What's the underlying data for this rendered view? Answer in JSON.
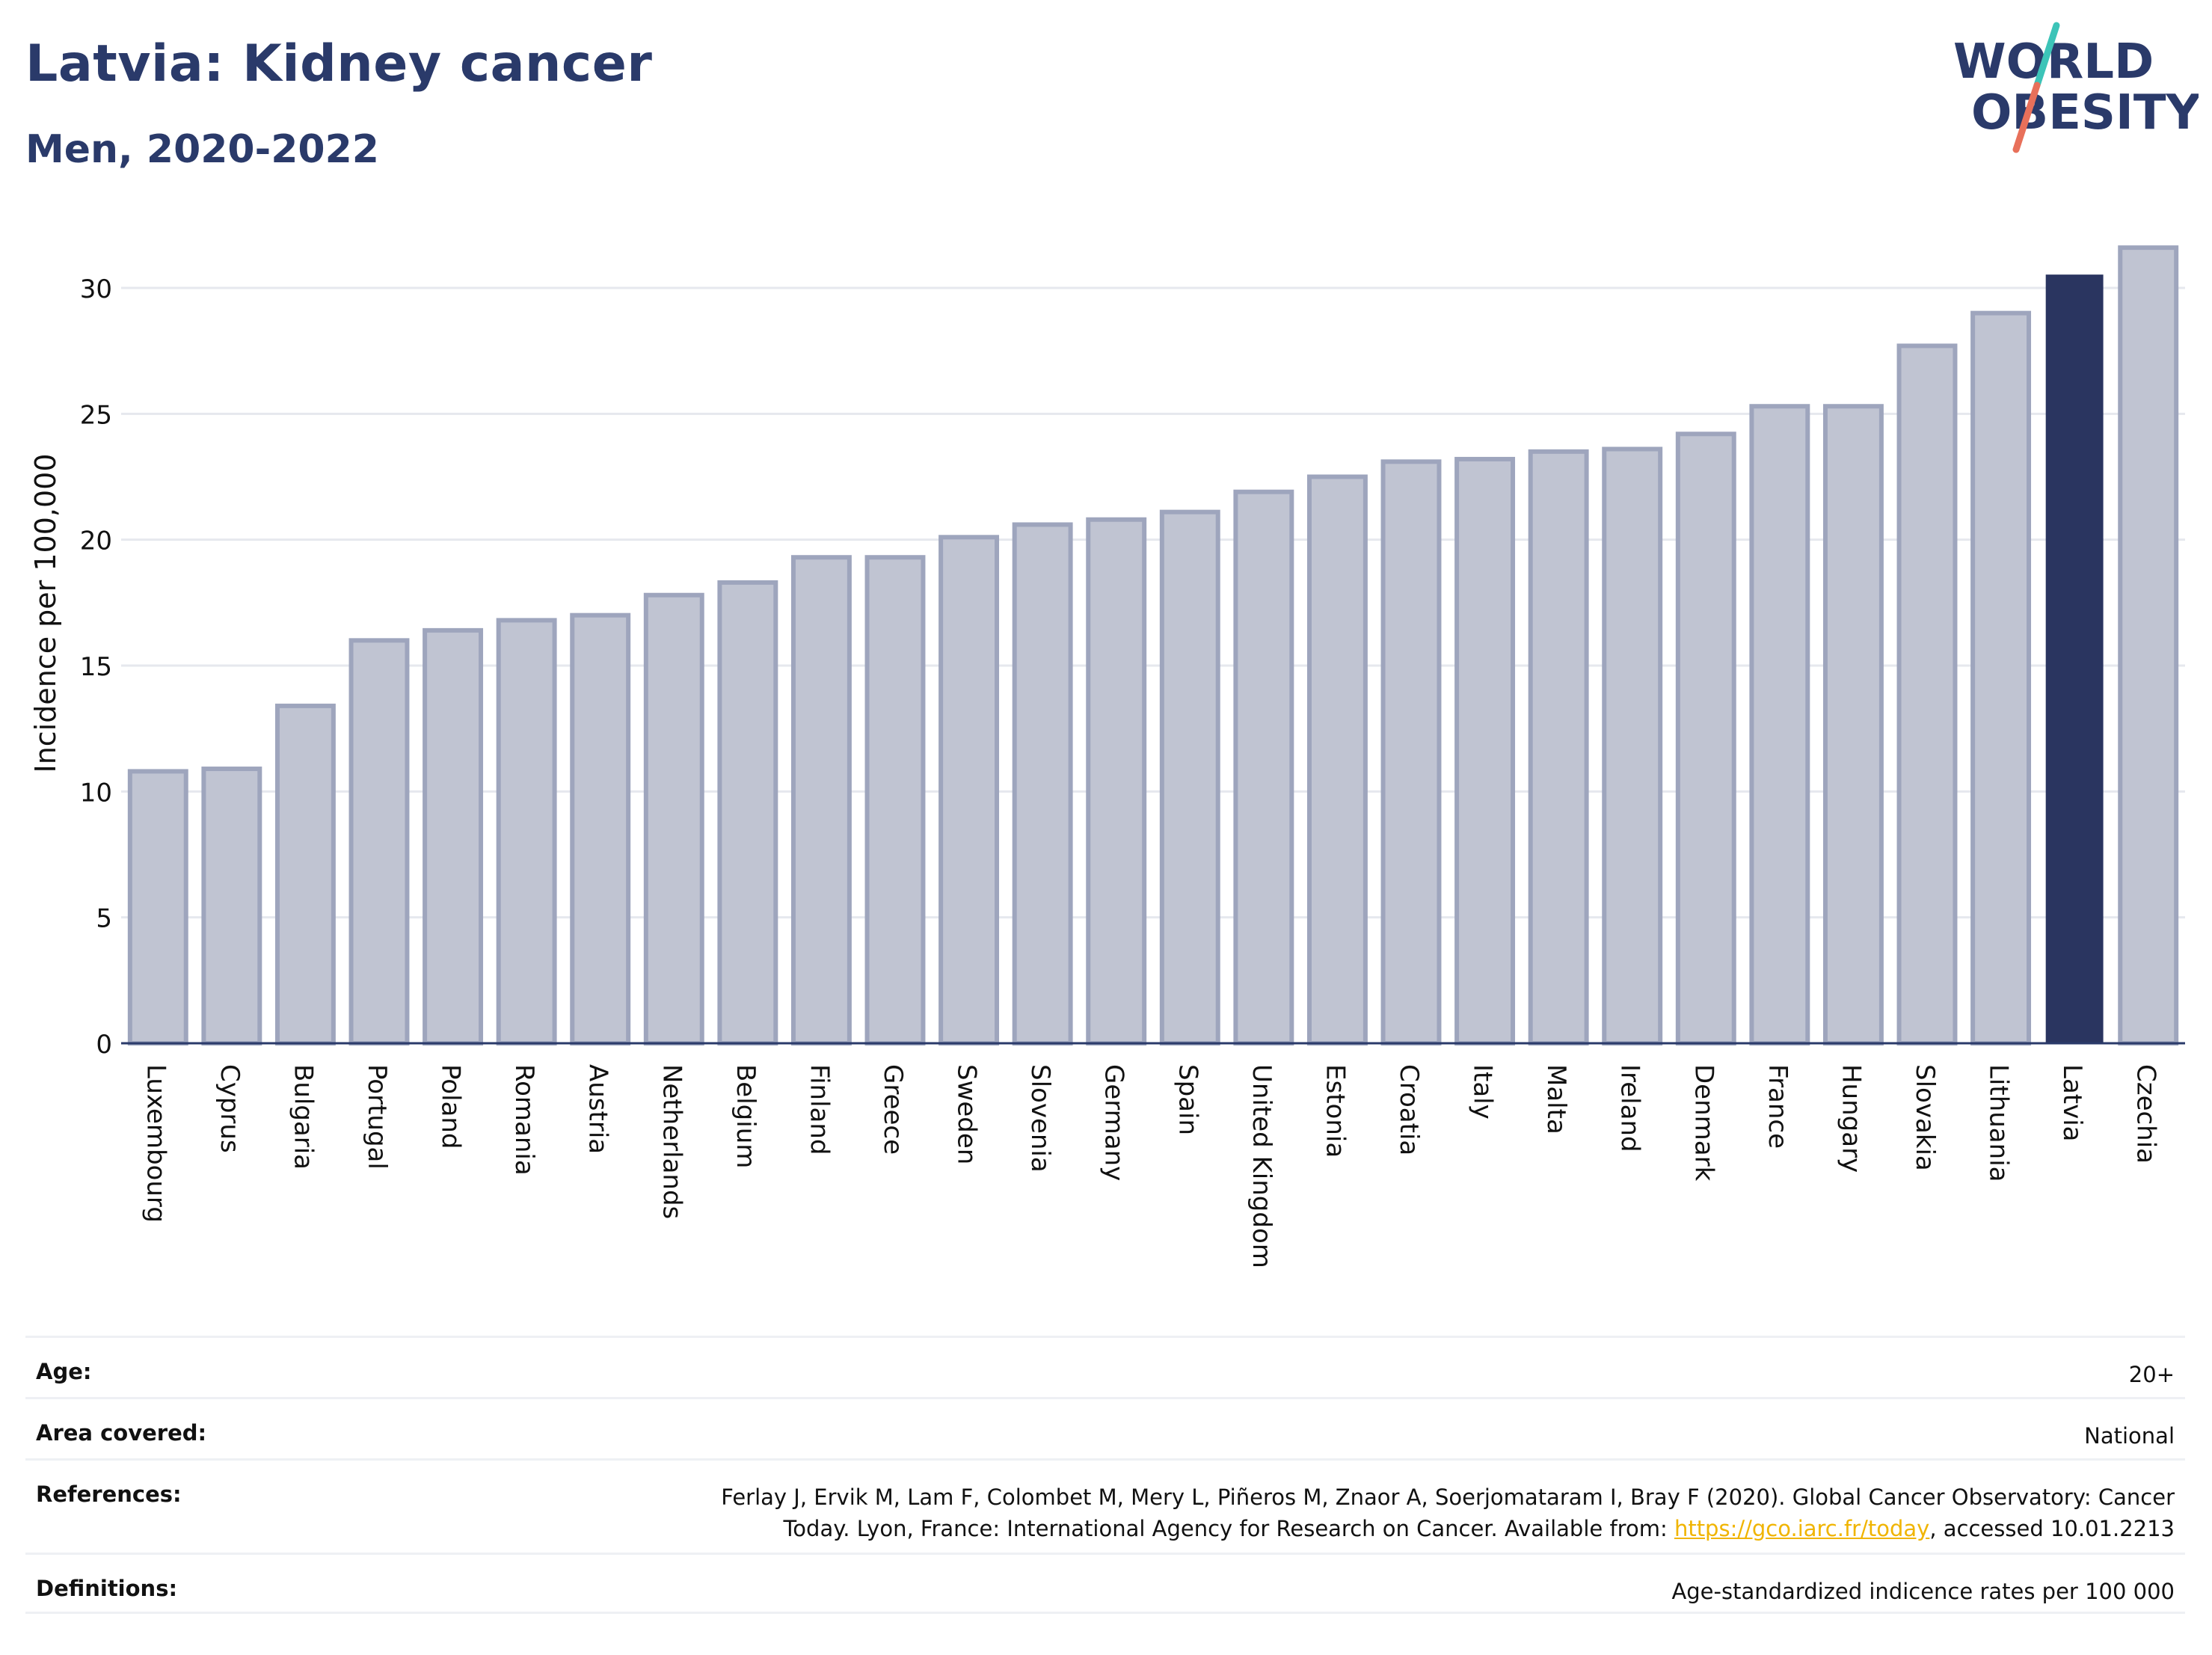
{
  "header": {
    "title": "Latvia: Kidney cancer",
    "subtitle": "Men, 2020-2022"
  },
  "logo": {
    "line1": "WORLD",
    "line2": "OBESITY",
    "colors": {
      "text": "#2a3a6a",
      "slash_top": "#3cc4b8",
      "slash_bottom": "#e8705a"
    }
  },
  "chart_data": {
    "type": "bar",
    "title": "Latvia: Kidney cancer",
    "subtitle": "Men, 2020-2022",
    "xlabel": "",
    "ylabel": "Incidence per 100,000",
    "ylim": [
      0,
      32
    ],
    "yticks": [
      0,
      5,
      10,
      15,
      20,
      25,
      30
    ],
    "grid": true,
    "highlight": "Latvia",
    "colors": {
      "bar": "#c0c4d2",
      "bar_edge": "#9ea5bd",
      "highlight": "#2a3560",
      "grid": "#e6e8ee",
      "axis": "#2a3a6a"
    },
    "categories": [
      "Luxembourg",
      "Cyprus",
      "Bulgaria",
      "Portugal",
      "Poland",
      "Romania",
      "Austria",
      "Netherlands",
      "Belgium",
      "Finland",
      "Greece",
      "Sweden",
      "Slovenia",
      "Germany",
      "Spain",
      "United Kingdom",
      "Estonia",
      "Croatia",
      "Italy",
      "Malta",
      "Ireland",
      "Denmark",
      "France",
      "Hungary",
      "Slovakia",
      "Lithuania",
      "Latvia",
      "Czechia"
    ],
    "values": [
      10.8,
      10.9,
      13.4,
      16.0,
      16.4,
      16.8,
      17.0,
      17.8,
      18.3,
      19.3,
      19.3,
      20.1,
      20.6,
      20.8,
      21.1,
      21.9,
      22.5,
      23.1,
      23.2,
      23.5,
      23.6,
      24.2,
      25.3,
      25.3,
      27.7,
      29.0,
      30.5,
      31.6
    ]
  },
  "meta": {
    "age_label": "Age:",
    "age_value": "20+",
    "area_label": "Area covered:",
    "area_value": "National",
    "references_label": "References:",
    "references_line1": "Ferlay J, Ervik M, Lam F, Colombet M, Mery L, Piñeros M, Znaor A, Soerjomataram I, Bray F (2020). Global Cancer Observatory: Cancer",
    "references_line2_pre": "Today. Lyon, France: International Agency for Research on Cancer. Available from: ",
    "references_link": "https://gco.iarc.fr/today",
    "references_line2_post": ", accessed 10.01.2213",
    "definitions_label": "Definitions:",
    "definitions_value": "Age-standardized indicence rates per 100 000"
  }
}
